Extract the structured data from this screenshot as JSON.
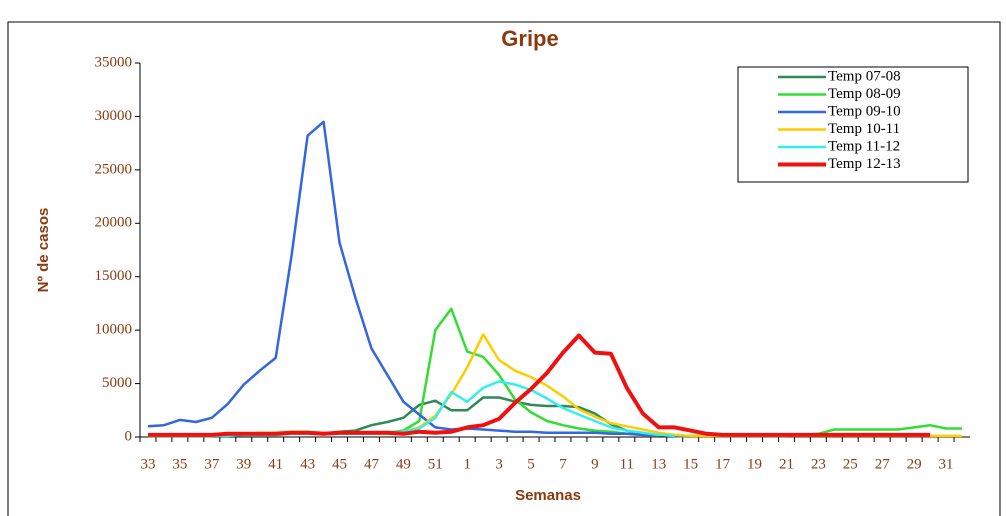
{
  "chart_data": {
    "type": "line",
    "title": "Gripe",
    "x_label": "Semanas",
    "y_label": "Nº de casos",
    "categories": [
      "33",
      null,
      "35",
      null,
      "37",
      null,
      "39",
      null,
      "41",
      null,
      "43",
      null,
      "45",
      null,
      "47",
      null,
      "49",
      null,
      "51",
      null,
      "1",
      null,
      "3",
      null,
      "5",
      null,
      "7",
      null,
      "9",
      null,
      "11",
      null,
      "13",
      null,
      "15",
      null,
      "17",
      null,
      "19",
      null,
      "21",
      null,
      "23",
      null,
      "25",
      null,
      "27",
      null,
      "29",
      null,
      "31",
      null
    ],
    "ylim": [
      0,
      35000
    ],
    "yticks": [
      0,
      5000,
      10000,
      15000,
      20000,
      25000,
      30000,
      35000
    ],
    "legend": "top-right",
    "series": [
      {
        "name": "Temp 07-08",
        "color": "#2e8b57",
        "line_width": 2.5,
        "values": [
          200,
          200,
          200,
          200,
          200,
          200,
          300,
          300,
          300,
          400,
          400,
          300,
          500,
          600,
          1100,
          1400,
          1800,
          3000,
          3400,
          2500,
          2500,
          3700,
          3700,
          3300,
          3000,
          2900,
          2900,
          2800,
          2200,
          1200,
          600,
          300,
          200,
          100,
          50,
          null,
          null,
          null,
          null,
          null,
          null,
          null,
          null,
          null,
          null,
          null,
          null,
          null,
          null,
          null,
          null,
          null
        ]
      },
      {
        "name": "Temp 08-09",
        "color": "#33dd33",
        "line_width": 2.5,
        "values": [
          100,
          100,
          100,
          100,
          100,
          200,
          200,
          200,
          200,
          300,
          300,
          300,
          300,
          400,
          400,
          400,
          600,
          1500,
          10000,
          12000,
          8000,
          7500,
          5800,
          3500,
          2300,
          1500,
          1100,
          800,
          600,
          500,
          300,
          200,
          200,
          100,
          100,
          100,
          100,
          100,
          100,
          100,
          100,
          200,
          300,
          700,
          700,
          700,
          700,
          700,
          900,
          1100,
          800,
          800
        ]
      },
      {
        "name": "Temp 09-10",
        "color": "#3366e0",
        "line_width": 2.5,
        "values": [
          1000,
          1100,
          1600,
          1400,
          1800,
          3100,
          4900,
          6200,
          7400,
          17000,
          28200,
          29500,
          18200,
          13000,
          8300,
          5800,
          3300,
          2100,
          900,
          700,
          800,
          700,
          600,
          500,
          500,
          400,
          400,
          400,
          400,
          300,
          300,
          200,
          200,
          100,
          100,
          null,
          null,
          null,
          null,
          null,
          null,
          null,
          null,
          null,
          null,
          null,
          null,
          null,
          null,
          null,
          null,
          null
        ]
      },
      {
        "name": "Temp 10-11",
        "color": "#ffcc00",
        "line_width": 2.5,
        "values": [
          100,
          100,
          100,
          100,
          100,
          200,
          300,
          400,
          400,
          500,
          500,
          400,
          300,
          300,
          300,
          300,
          500,
          900,
          2000,
          4000,
          6500,
          9600,
          7200,
          6200,
          5600,
          4800,
          3800,
          2600,
          1900,
          1300,
          1000,
          700,
          400,
          200,
          100,
          100,
          100,
          100,
          100,
          100,
          100,
          100,
          100,
          100,
          100,
          100,
          100,
          100,
          100,
          100,
          100,
          100
        ]
      },
      {
        "name": "Temp 11-12",
        "color": "#33eeee",
        "line_width": 2.5,
        "values": [
          100,
          100,
          100,
          100,
          100,
          100,
          200,
          200,
          200,
          300,
          300,
          300,
          300,
          300,
          300,
          400,
          500,
          800,
          1800,
          4200,
          3300,
          4600,
          5200,
          4900,
          4400,
          3600,
          2700,
          2100,
          1500,
          900,
          600,
          400,
          200,
          100,
          null,
          null,
          null,
          null,
          null,
          null,
          null,
          null,
          null,
          null,
          null,
          null,
          null,
          null,
          null,
          null,
          null,
          null
        ]
      },
      {
        "name": "Temp 12-13",
        "color": "#ee1111",
        "line_width": 4,
        "values": [
          200,
          200,
          200,
          200,
          200,
          300,
          300,
          300,
          300,
          400,
          400,
          300,
          400,
          400,
          400,
          400,
          300,
          500,
          400,
          500,
          900,
          1100,
          1700,
          3200,
          4500,
          6000,
          7900,
          9500,
          7900,
          7800,
          4600,
          2200,
          900,
          900,
          600,
          300,
          200,
          200,
          200,
          200,
          200,
          200,
          200,
          200,
          200,
          200,
          200,
          200,
          200,
          200,
          null,
          null
        ]
      }
    ]
  }
}
